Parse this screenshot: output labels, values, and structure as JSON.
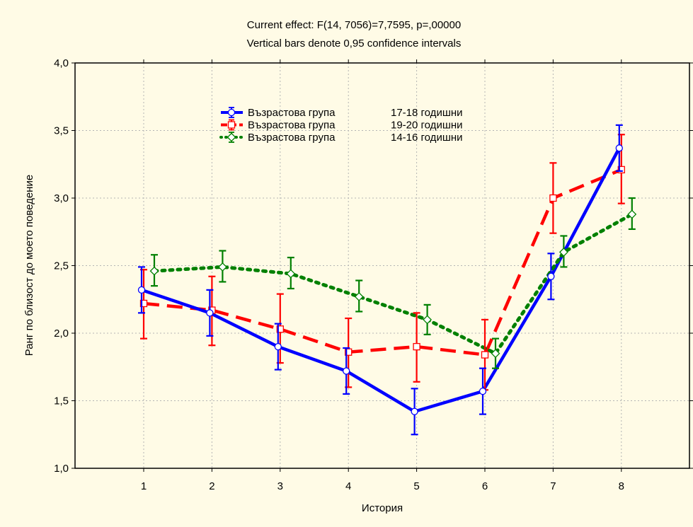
{
  "chart_data": {
    "type": "line",
    "title": "Current effect: F(14, 7056)=7,7595, p=,00000",
    "subtitle": "Vertical bars denote 0,95 confidence intervals",
    "xlabel": "История",
    "ylabel": "Ранг по близост до моето поведение",
    "categories": [
      "1",
      "2",
      "3",
      "4",
      "5",
      "6",
      "7",
      "8"
    ],
    "ylim": [
      1.0,
      4.0
    ],
    "yticks": [
      "1,0",
      "1,5",
      "2,0",
      "2,5",
      "3,0",
      "3,5",
      "4,0"
    ],
    "grid": true,
    "legend_position": "top-center",
    "series": [
      {
        "name": "Възрастова група",
        "group": "17-18 годишни",
        "color": "#0000ff",
        "line_style": "solid",
        "marker": "circle",
        "values": [
          2.32,
          2.15,
          1.9,
          1.72,
          1.42,
          1.57,
          2.42,
          3.37
        ],
        "ci_lower": [
          2.15,
          1.98,
          1.73,
          1.55,
          1.25,
          1.4,
          2.25,
          3.2
        ],
        "ci_upper": [
          2.49,
          2.32,
          2.07,
          1.89,
          1.59,
          1.74,
          2.59,
          3.54
        ]
      },
      {
        "name": "Възрастова група",
        "group": "19-20 годишни",
        "color": "#ff0000",
        "line_style": "dashed",
        "marker": "square",
        "values": [
          2.22,
          2.17,
          2.03,
          1.86,
          1.9,
          1.84,
          3.0,
          3.21
        ],
        "ci_lower": [
          1.96,
          1.91,
          1.78,
          1.6,
          1.64,
          1.58,
          2.74,
          2.96
        ],
        "ci_upper": [
          2.47,
          2.42,
          2.29,
          2.11,
          2.15,
          2.1,
          3.26,
          3.47
        ]
      },
      {
        "name": "Възрастова група",
        "group": "14-16 годишни",
        "color": "#008000",
        "line_style": "dotted",
        "marker": "diamond",
        "values": [
          2.46,
          2.49,
          2.44,
          2.27,
          2.1,
          1.85,
          2.6,
          2.88
        ],
        "ci_lower": [
          2.35,
          2.38,
          2.33,
          2.16,
          1.99,
          1.74,
          2.49,
          2.77
        ],
        "ci_upper": [
          2.58,
          2.61,
          2.56,
          2.39,
          2.21,
          1.96,
          2.72,
          3.0
        ]
      }
    ]
  }
}
